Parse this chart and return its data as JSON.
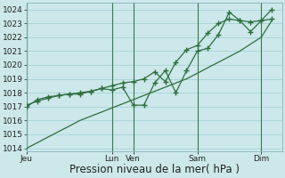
{
  "bg_color": "#cce8ea",
  "grid_color": "#9ecfd4",
  "line_color": "#2d6e3e",
  "ylim": [
    1013.8,
    1024.5
  ],
  "yticks": [
    1014,
    1015,
    1016,
    1017,
    1018,
    1019,
    1020,
    1021,
    1022,
    1023,
    1024
  ],
  "xlabel": "Pression niveau de la mer( hPa )",
  "xlabel_fontsize": 8.5,
  "tick_fontsize": 6.5,
  "day_labels": [
    "Jeu",
    "Lun",
    "Ven",
    "Sam",
    "Dim"
  ],
  "day_positions": [
    0.0,
    0.333,
    0.417,
    0.667,
    0.917
  ],
  "vline_positions": [
    0.0,
    0.333,
    0.417,
    0.667,
    0.917
  ],
  "smooth_x": [
    0.0,
    0.042,
    0.083,
    0.125,
    0.167,
    0.208,
    0.25,
    0.292,
    0.333,
    0.375,
    0.417,
    0.458,
    0.5,
    0.542,
    0.583,
    0.625,
    0.667,
    0.708,
    0.75,
    0.792,
    0.833,
    0.875,
    0.917,
    0.958
  ],
  "smooth_y": [
    1014.0,
    1014.4,
    1014.8,
    1015.2,
    1015.6,
    1016.0,
    1016.3,
    1016.6,
    1016.9,
    1017.2,
    1017.5,
    1017.8,
    1018.1,
    1018.4,
    1018.7,
    1019.0,
    1019.4,
    1019.8,
    1020.2,
    1020.6,
    1021.0,
    1021.5,
    1022.0,
    1023.2
  ],
  "line2_x": [
    0.0,
    0.042,
    0.083,
    0.125,
    0.167,
    0.208,
    0.25,
    0.292,
    0.333,
    0.375,
    0.417,
    0.458,
    0.5,
    0.542,
    0.583,
    0.625,
    0.667,
    0.708,
    0.75,
    0.792,
    0.833,
    0.875,
    0.917,
    0.958
  ],
  "line2_y": [
    1017.0,
    1017.5,
    1017.7,
    1017.8,
    1017.9,
    1017.9,
    1018.1,
    1018.3,
    1018.2,
    1018.4,
    1017.1,
    1017.1,
    1018.7,
    1019.6,
    1018.0,
    1019.6,
    1021.0,
    1021.2,
    1022.2,
    1023.8,
    1023.2,
    1022.4,
    1023.2,
    1024.0
  ],
  "line3_x": [
    0.0,
    0.042,
    0.083,
    0.125,
    0.167,
    0.208,
    0.25,
    0.292,
    0.333,
    0.375,
    0.417,
    0.458,
    0.5,
    0.542,
    0.583,
    0.625,
    0.667,
    0.708,
    0.75,
    0.792,
    0.833,
    0.875,
    0.917,
    0.958
  ],
  "line3_y": [
    1017.1,
    1017.4,
    1017.6,
    1017.8,
    1017.9,
    1018.0,
    1018.1,
    1018.3,
    1018.5,
    1018.7,
    1018.8,
    1019.0,
    1019.5,
    1018.8,
    1020.2,
    1021.1,
    1021.4,
    1022.3,
    1023.0,
    1023.3,
    1023.2,
    1023.1,
    1023.2,
    1023.3
  ]
}
